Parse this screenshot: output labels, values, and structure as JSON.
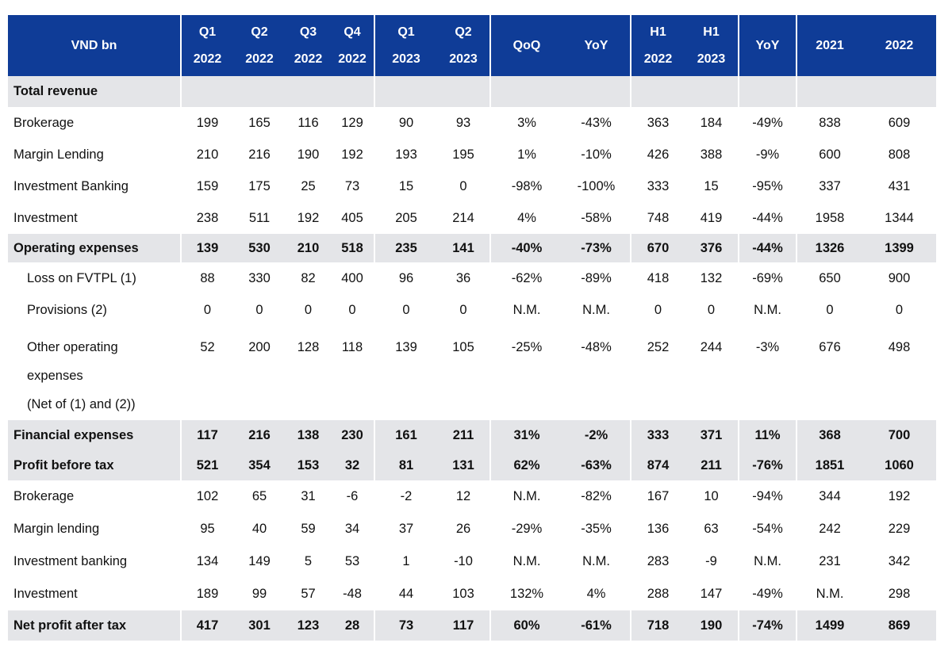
{
  "table": {
    "columns": [
      {
        "l1": "VND bn",
        "l2": ""
      },
      {
        "l1": "Q1",
        "l2": "2022"
      },
      {
        "l1": "Q2",
        "l2": "2022"
      },
      {
        "l1": "Q3",
        "l2": "2022"
      },
      {
        "l1": "Q4",
        "l2": "2022"
      },
      {
        "l1": "Q1",
        "l2": "2023"
      },
      {
        "l1": "Q2",
        "l2": "2023"
      },
      {
        "l1": "QoQ",
        "l2": ""
      },
      {
        "l1": "YoY",
        "l2": ""
      },
      {
        "l1": "H1",
        "l2": "2022"
      },
      {
        "l1": "H1",
        "l2": "2023"
      },
      {
        "l1": "YoY",
        "l2": ""
      },
      {
        "l1": "2021",
        "l2": ""
      },
      {
        "l1": "2022",
        "l2": ""
      }
    ],
    "rows": [
      {
        "label": "Total revenue",
        "values": [
          "",
          "",
          "",
          "",
          "",
          "",
          "",
          "",
          "",
          "",
          "",
          "",
          ""
        ]
      },
      {
        "label": "Brokerage",
        "values": [
          "199",
          "165",
          "116",
          "129",
          "90",
          "93",
          "3%",
          "-43%",
          "363",
          "184",
          "-49%",
          "838",
          "609"
        ]
      },
      {
        "label": "Margin Lending",
        "values": [
          "210",
          "216",
          "190",
          "192",
          "193",
          "195",
          "1%",
          "-10%",
          "426",
          "388",
          "-9%",
          "600",
          "808"
        ]
      },
      {
        "label": "Investment Banking",
        "values": [
          "159",
          "175",
          "25",
          "73",
          "15",
          "0",
          "-98%",
          "-100%",
          "333",
          "15",
          "-95%",
          "337",
          "431"
        ]
      },
      {
        "label": "Investment",
        "values": [
          "238",
          "511",
          "192",
          "405",
          "205",
          "214",
          "4%",
          "-58%",
          "748",
          "419",
          "-44%",
          "1958",
          "1344"
        ]
      },
      {
        "label": "Operating expenses",
        "values": [
          "139",
          "530",
          "210",
          "518",
          "235",
          "141",
          "-40%",
          "-73%",
          "670",
          "376",
          "-44%",
          "1326",
          "1399"
        ]
      },
      {
        "label": "Loss on FVTPL (1)",
        "values": [
          "88",
          "330",
          "82",
          "400",
          "96",
          "36",
          "-62%",
          "-89%",
          "418",
          "132",
          "-69%",
          "650",
          "900"
        ]
      },
      {
        "label": "Provisions (2)",
        "values": [
          "0",
          "0",
          "0",
          "0",
          "0",
          "0",
          "N.M.",
          "N.M.",
          "0",
          "0",
          "N.M.",
          "0",
          "0"
        ]
      },
      {
        "label_lines": [
          "Other operating",
          "expenses",
          "(Net of (1) and (2))"
        ],
        "values": [
          "52",
          "200",
          "128",
          "118",
          "139",
          "105",
          "-25%",
          "-48%",
          "252",
          "244",
          "-3%",
          "676",
          "498"
        ]
      },
      {
        "label": "Financial expenses",
        "values": [
          "117",
          "216",
          "138",
          "230",
          "161",
          "211",
          "31%",
          "-2%",
          "333",
          "371",
          "11%",
          "368",
          "700"
        ]
      },
      {
        "label": "Profit before tax",
        "values": [
          "521",
          "354",
          "153",
          "32",
          "81",
          "131",
          "62%",
          "-63%",
          "874",
          "211",
          "-76%",
          "1851",
          "1060"
        ]
      },
      {
        "label": "Brokerage",
        "values": [
          "102",
          "65",
          "31",
          "-6",
          "-2",
          "12",
          "N.M.",
          "-82%",
          "167",
          "10",
          "-94%",
          "344",
          "192"
        ]
      },
      {
        "label": "Margin lending",
        "values": [
          "95",
          "40",
          "59",
          "34",
          "37",
          "26",
          "-29%",
          "-35%",
          "136",
          "63",
          "-54%",
          "242",
          "229"
        ]
      },
      {
        "label": "Investment banking",
        "values": [
          "134",
          "149",
          "5",
          "53",
          "1",
          "-10",
          "N.M.",
          "N.M.",
          "283",
          "-9",
          "N.M.",
          "231",
          "342"
        ]
      },
      {
        "label": "Investment",
        "values": [
          "189",
          "99",
          "57",
          "-48",
          "44",
          "103",
          "132%",
          "4%",
          "288",
          "147",
          "-49%",
          "N.M.",
          "298"
        ]
      },
      {
        "label": "Net profit after tax",
        "values": [
          "417",
          "301",
          "123",
          "28",
          "73",
          "117",
          "60%",
          "-61%",
          "718",
          "190",
          "-74%",
          "1499",
          "869"
        ]
      }
    ]
  }
}
